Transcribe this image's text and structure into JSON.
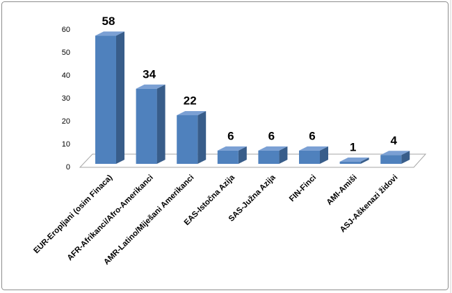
{
  "chart_data": {
    "type": "bar3d",
    "categories": [
      "EUR-Eropljani (osim Finaca)",
      "AFR-Afrikanci/Afro-Amerikanci",
      "AMR-Latino/Miješani Amerikanci",
      "EAS-Istočna Azija",
      "SAS-Južna Azija",
      "FIN-Finci",
      "AMI-Amiši",
      "ASJ-Aškenazi židovi"
    ],
    "values": [
      58,
      34,
      22,
      6,
      6,
      6,
      1,
      4
    ],
    "color": "#4f81bd",
    "ylim": [
      0,
      60
    ],
    "yticks": [
      0,
      10,
      20,
      30,
      40,
      50,
      60
    ],
    "grid": false
  }
}
